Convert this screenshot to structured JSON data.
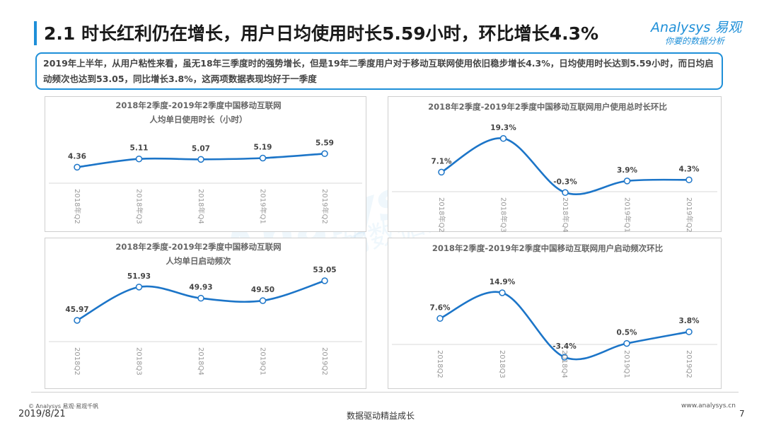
{
  "header": {
    "title": "2.1 时长红利仍在增长，用户日均使用时长5.59小时，环比增长4.3%",
    "logo_text": "Analysys 易观",
    "logo_sub": "你要的数据分析"
  },
  "summary": "2019年上半年，从用户粘性来看，虽无18年三季度时的强势增长，但是19年二季度用户对于移动互联网使用依旧稳步增长4.3%，日均使用时长达到5.59小时，而日均启动频次也达到53.05，同比增长3.8%，这两项数据表现均好于一季度",
  "watermark": {
    "main": "Analysys 易观",
    "sub": "你要的数据分析"
  },
  "footer": {
    "copyright": "© Analysys 易观·易观千帆",
    "date": "2019/8/21",
    "center": "数据驱动精益成长",
    "website": "www.analysys.cn",
    "page": "7"
  },
  "colors": {
    "accent": "#1e8fd8",
    "line": "#1c75c8"
  },
  "chart_data": [
    {
      "type": "line",
      "title": "2018年2季度-2019年2季度中国移动互联网",
      "subtitle": "人均单日使用时长（小时）",
      "categories": [
        "2018年Q2",
        "2018年Q3",
        "2018年Q4",
        "2019年Q1",
        "2019年Q2"
      ],
      "values": [
        4.36,
        5.11,
        5.07,
        5.19,
        5.59
      ],
      "labels": [
        "4.36",
        "5.11",
        "5.07",
        "5.19",
        "5.59"
      ]
    },
    {
      "type": "line",
      "title": "2018年2季度-2019年2季度中国移动互联网用户使用总时长环比",
      "subtitle": "",
      "categories": [
        "2018年Q2",
        "2018年Q3",
        "2018年Q4",
        "2019年Q1",
        "2019年Q2"
      ],
      "values": [
        7.1,
        19.3,
        -0.3,
        3.9,
        4.3
      ],
      "labels": [
        "7.1%",
        "19.3%",
        "-0.3%",
        "3.9%",
        "4.3%"
      ]
    },
    {
      "type": "line",
      "title": "2018年2季度-2019年2季度中国移动互联网",
      "subtitle": "人均单日启动频次",
      "categories": [
        "2018Q2",
        "2018Q3",
        "2018Q4",
        "2019Q1",
        "2019Q2"
      ],
      "values": [
        45.97,
        51.93,
        49.93,
        49.5,
        53.05
      ],
      "labels": [
        "45.97",
        "51.93",
        "49.93",
        "49.50",
        "53.05"
      ]
    },
    {
      "type": "line",
      "title": "2018年2季度-2019年2季度中国移动互联网用户启动频次环比",
      "subtitle": "",
      "categories": [
        "2018Q2",
        "2018Q3",
        "2018Q4",
        "2019Q1",
        "2019Q2"
      ],
      "values": [
        7.6,
        14.9,
        -3.4,
        0.5,
        3.8
      ],
      "labels": [
        "7.6%",
        "14.9%",
        "-3.4%",
        "0.5%",
        "3.8%"
      ]
    }
  ]
}
